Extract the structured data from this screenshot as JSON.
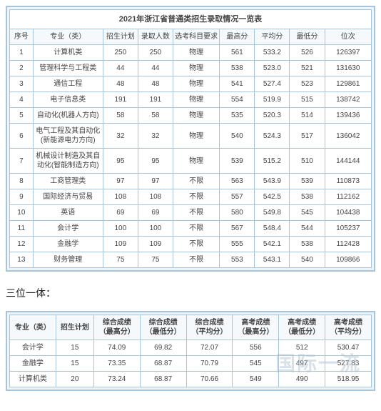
{
  "table1": {
    "title": "2021年浙江省普通类招生录取情况一览表",
    "columns": [
      "序号",
      "专业（类）",
      "招生计划",
      "录取人数",
      "选考科目要求",
      "最高分",
      "平均分",
      "最低分",
      "位次"
    ],
    "rows": [
      [
        "1",
        "计算机类",
        "250",
        "250",
        "物理",
        "561",
        "533.2",
        "526",
        "126397"
      ],
      [
        "2",
        "管理科学与工程类",
        "44",
        "44",
        "物理",
        "538",
        "523.0",
        "521",
        "131630"
      ],
      [
        "3",
        "通信工程",
        "48",
        "48",
        "物理",
        "541",
        "527.4",
        "523",
        "129861"
      ],
      [
        "4",
        "电子信息类",
        "191",
        "191",
        "物理",
        "554",
        "519.9",
        "515",
        "138742"
      ],
      [
        "5",
        "自动化(机器人方向)",
        "58",
        "58",
        "物理",
        "535",
        "520.3",
        "514",
        "139436"
      ],
      [
        "6",
        "电气工程及其自动化(新能源电力方向)",
        "32",
        "32",
        "物理",
        "540",
        "524.3",
        "517",
        "136042"
      ],
      [
        "7",
        "机械设计制造及其自动化(智能制造方向)",
        "95",
        "95",
        "物理",
        "539",
        "515.2",
        "510",
        "144144"
      ],
      [
        "8",
        "工商管理类",
        "97",
        "97",
        "不限",
        "563",
        "543.9",
        "539",
        "110873"
      ],
      [
        "9",
        "国际经济与贸易",
        "108",
        "108",
        "不限",
        "557",
        "542.5",
        "538",
        "112162"
      ],
      [
        "10",
        "英语",
        "69",
        "69",
        "不限",
        "580",
        "549.8",
        "545",
        "104438"
      ],
      [
        "11",
        "会计学",
        "100",
        "100",
        "不限",
        "567",
        "548.4",
        "544",
        "105237"
      ],
      [
        "12",
        "金融学",
        "109",
        "109",
        "不限",
        "555",
        "542.1",
        "538",
        "112428"
      ],
      [
        "13",
        "财务管理",
        "75",
        "75",
        "不限",
        "553",
        "543.1",
        "540",
        "109866"
      ]
    ],
    "col_widths": [
      "6%",
      "18%",
      "9%",
      "9%",
      "12%",
      "9%",
      "9%",
      "9%",
      "12%"
    ]
  },
  "section_label": "三位一体：",
  "table2": {
    "columns": [
      "专业（类）",
      "招生计划",
      "综合成绩\n（最高分）",
      "综合成绩\n（最低分）",
      "综合成绩\n（平均分）",
      "高考成绩\n（最高分）",
      "高考成绩\n（最低分）",
      "高考成绩\n（平均分）"
    ],
    "rows": [
      [
        "会计学",
        "15",
        "74.09",
        "69.82",
        "72.07",
        "556",
        "512",
        "530.47"
      ],
      [
        "金融学",
        "15",
        "73.35",
        "68.87",
        "70.79",
        "545",
        "497",
        "527.83"
      ],
      [
        "计算机类",
        "20",
        "73.24",
        "68.87",
        "70.66",
        "549",
        "490",
        "518.95"
      ]
    ]
  },
  "watermark": "国际一流",
  "colors": {
    "border": "#a8c4d8",
    "bg_wrap": "#eef5fa",
    "bg_header": "#f5f9fc"
  }
}
